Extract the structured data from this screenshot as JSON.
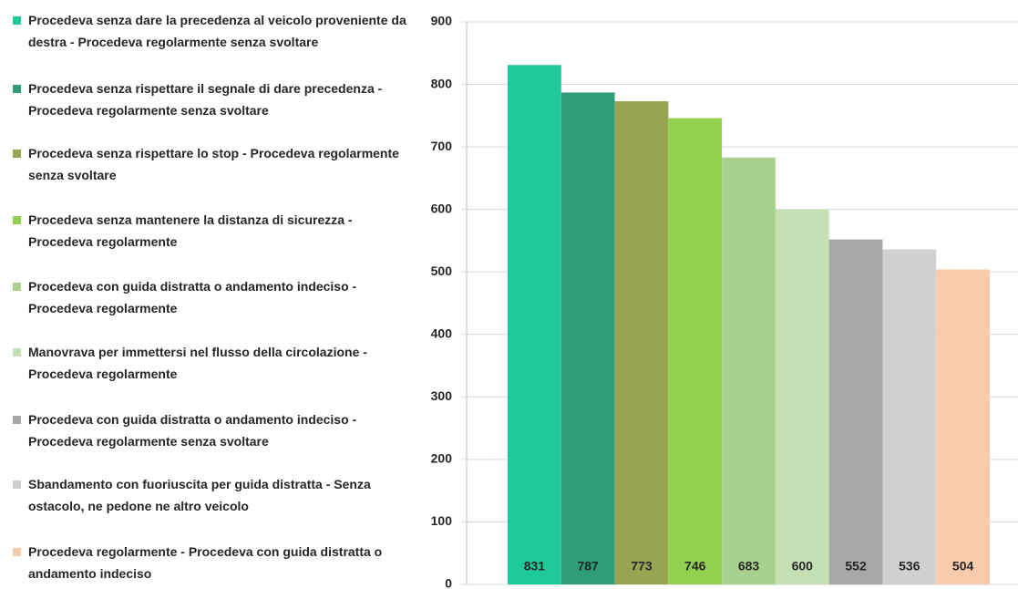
{
  "chart_data": {
    "type": "bar",
    "series": [
      {
        "name": "Procedeva senza dare la precedenza al veicolo proveniente da destra - Procedeva regolarmente senza svoltare",
        "color": "#1ec99a",
        "values": [
          831
        ]
      },
      {
        "name": "Procedeva senza rispettare il segnale di dare precedenza - Procedeva regolarmente senza svoltare",
        "color": "#2e9d79",
        "values": [
          787
        ]
      },
      {
        "name": "Procedeva senza rispettare lo stop - Procedeva regolarmente senza svoltare",
        "color": "#97a552",
        "values": [
          773
        ]
      },
      {
        "name": "Procedeva senza mantenere la distanza di sicurezza - Procedeva regolarmente",
        "color": "#92d050",
        "values": [
          746
        ]
      },
      {
        "name": "Procedeva con guida distratta o andamento indeciso - Procedeva regolarmente",
        "color": "#a9d18e",
        "values": [
          683
        ]
      },
      {
        "name": "Manovrava per immettersi nel flusso della circolazione - Procedeva regolarmente",
        "color": "#c5e0b4",
        "values": [
          600
        ]
      },
      {
        "name": "Procedeva con guida distratta o andamento indeciso - Procedeva regolarmente senza svoltare",
        "color": "#a8a6a6",
        "values": [
          552
        ]
      },
      {
        "name": "Sbandamento con fuoriuscita per guida distratta - Senza ostacolo, ne pedone ne altro veicolo",
        "color": "#d1cfcf",
        "values": [
          536
        ]
      },
      {
        "name": "Procedeva regolarmente - Procedeva con guida distratta o andamento indeciso",
        "color": "#f8cbad",
        "values": [
          504
        ]
      }
    ],
    "ylim": [
      0,
      900
    ],
    "yticks": [
      0,
      100,
      200,
      300,
      400,
      500,
      600,
      700,
      800,
      900
    ],
    "grid": true
  }
}
